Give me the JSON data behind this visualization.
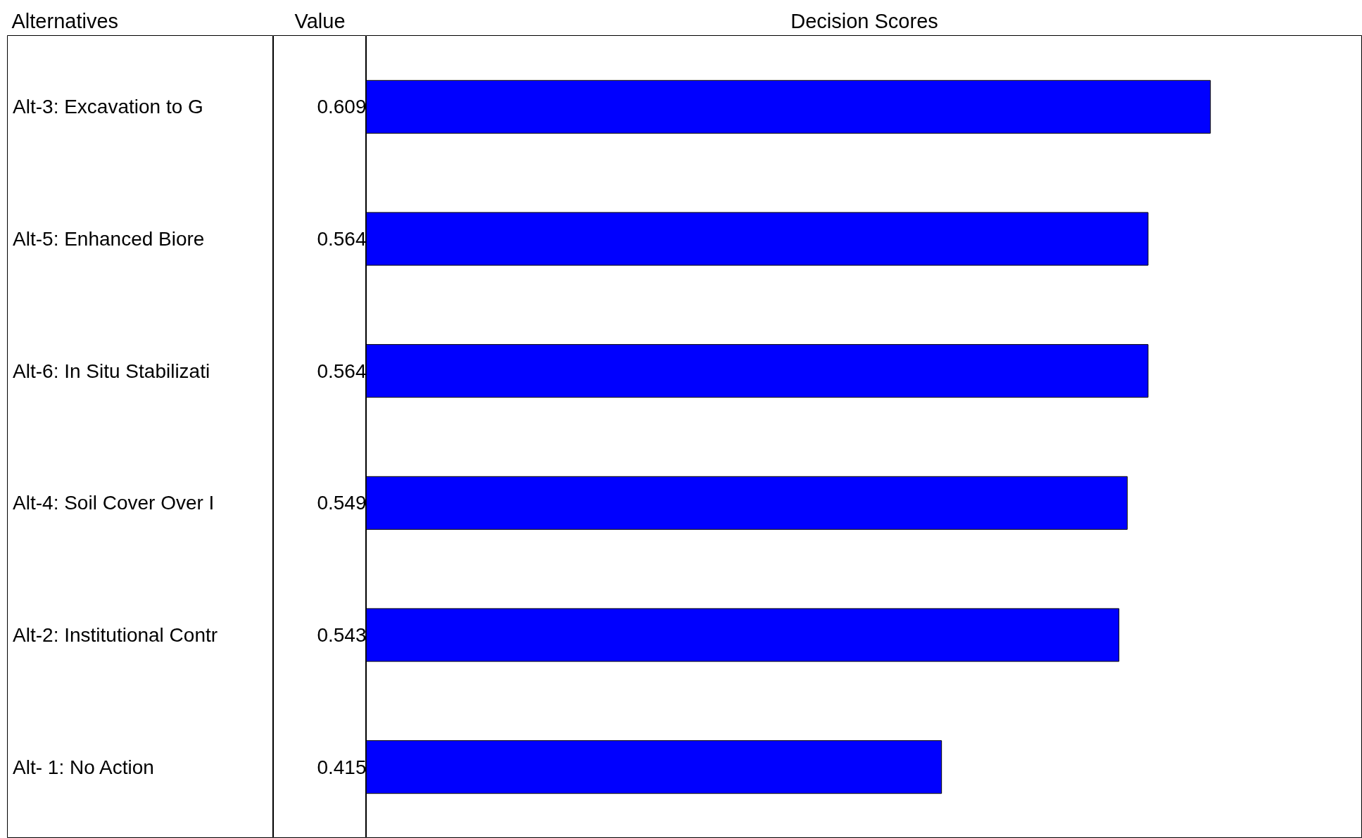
{
  "chart_data": {
    "type": "bar",
    "orientation": "horizontal",
    "ylabel": "Alternatives",
    "xlabel": "Decision Scores",
    "annotations": [
      "Value"
    ],
    "categories": [
      "Alt-3: Excavation to G",
      "Alt-5:  Enhanced Biore",
      "Alt-6: In Situ Stabilizati",
      "Alt-4: Soil Cover Over I",
      "Alt-2: Institutional Contr",
      "Alt- 1: No Action"
    ],
    "values": [
      0.609,
      0.564,
      0.564,
      0.549,
      0.543,
      0.415
    ],
    "color": "#0000ff",
    "data_labels": true,
    "grid": false
  }
}
